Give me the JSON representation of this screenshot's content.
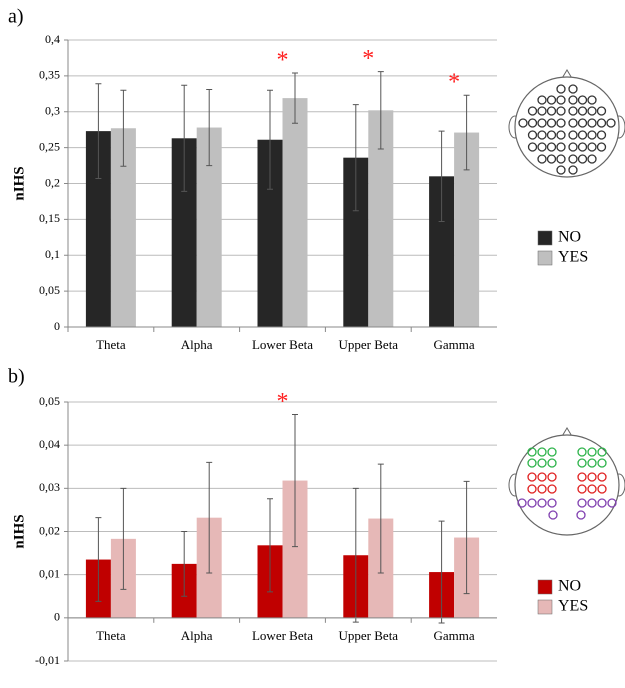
{
  "chart_data": [
    {
      "type": "bar",
      "panel_label": "a)",
      "ylabel": "nIHS",
      "categories": [
        "Theta",
        "Alpha",
        "Lower Beta",
        "Upper Beta",
        "Gamma"
      ],
      "series": [
        {
          "name": "NO",
          "color": "#262626",
          "values": [
            0.273,
            0.263,
            0.261,
            0.236,
            0.21
          ],
          "errors": [
            0.066,
            0.074,
            0.069,
            0.074,
            0.063
          ]
        },
        {
          "name": "YES",
          "color": "#bfbfbf",
          "values": [
            0.277,
            0.278,
            0.319,
            0.302,
            0.271
          ],
          "errors": [
            0.053,
            0.053,
            0.035,
            0.054,
            0.052
          ]
        }
      ],
      "ylim": [
        0,
        0.4
      ],
      "yticks": [
        0,
        {
          "value": 0.05,
          "label": "0,05"
        },
        {
          "value": 0.1,
          "label": "0,1"
        },
        {
          "value": 0.15,
          "label": "0,15"
        },
        {
          "value": 0.2,
          "label": "0,2"
        },
        {
          "value": 0.25,
          "label": "0,25"
        },
        {
          "value": 0.3,
          "label": "0,3"
        },
        {
          "value": 0.35,
          "label": "0,35"
        },
        {
          "value": 0.4,
          "label": "0,4"
        }
      ],
      "grid": true,
      "annotations": [
        {
          "text": "*",
          "x": "Lower Beta"
        },
        {
          "text": "*",
          "x": "Upper Beta"
        },
        {
          "text": "*",
          "x": "Gamma"
        }
      ]
    },
    {
      "type": "bar",
      "panel_label": "b)",
      "ylabel": "nIHS",
      "categories": [
        "Theta",
        "Alpha",
        "Lower Beta",
        "Upper Beta",
        "Gamma"
      ],
      "series": [
        {
          "name": "NO",
          "color": "#c00000",
          "values": [
            0.0135,
            0.0125,
            0.0168,
            0.0145,
            0.0106
          ],
          "errors": [
            0.0097,
            0.0075,
            0.0108,
            0.0155,
            0.0118
          ]
        },
        {
          "name": "YES",
          "color": "#e6b8b7",
          "values": [
            0.0183,
            0.0232,
            0.0318,
            0.023,
            0.0186
          ],
          "errors": [
            0.0117,
            0.0128,
            0.0153,
            0.0126,
            0.013
          ]
        }
      ],
      "ylim": [
        -0.01,
        0.05
      ],
      "yticks": [
        {
          "value": -0.01,
          "label": "-0,01"
        },
        0,
        {
          "value": 0.01,
          "label": "0,01"
        },
        {
          "value": 0.02,
          "label": "0,02"
        },
        {
          "value": 0.03,
          "label": "0,03"
        },
        {
          "value": 0.04,
          "label": "0,04"
        },
        {
          "value": 0.05,
          "label": "0,05"
        }
      ],
      "grid": true,
      "annotations": [
        {
          "text": "*",
          "x": "Lower Beta"
        }
      ]
    }
  ]
}
